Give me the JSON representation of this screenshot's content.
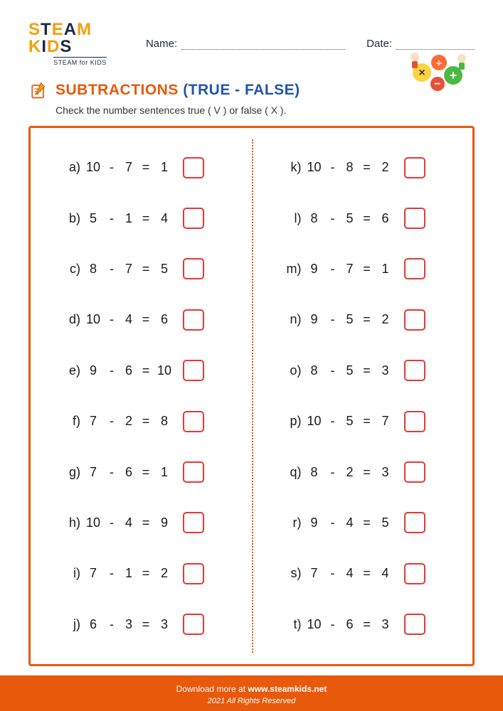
{
  "logo": {
    "main": "STEAM KIDS",
    "sub": "STEAM for KIDS"
  },
  "fields": {
    "name_label": "Name:",
    "date_label": "Date:"
  },
  "title": {
    "part1": "SUBTRACTIONS",
    "part2": "(TRUE - FALSE)"
  },
  "instructions": "Check the number sentences true ( V ) or false ( X ).",
  "problems_left": [
    {
      "label": "a)",
      "a": "10",
      "op": "-",
      "b": "7",
      "eq": "=",
      "r": "1"
    },
    {
      "label": "b)",
      "a": "5",
      "op": "-",
      "b": "1",
      "eq": "=",
      "r": "4"
    },
    {
      "label": "c)",
      "a": "8",
      "op": "-",
      "b": "7",
      "eq": "=",
      "r": "5"
    },
    {
      "label": "d)",
      "a": "10",
      "op": "-",
      "b": "4",
      "eq": "=",
      "r": "6"
    },
    {
      "label": "e)",
      "a": "9",
      "op": "-",
      "b": "6",
      "eq": "=",
      "r": "10"
    },
    {
      "label": "f)",
      "a": "7",
      "op": "-",
      "b": "2",
      "eq": "=",
      "r": "8"
    },
    {
      "label": "g)",
      "a": "7",
      "op": "-",
      "b": "6",
      "eq": "=",
      "r": "1"
    },
    {
      "label": "h)",
      "a": "10",
      "op": "-",
      "b": "4",
      "eq": "=",
      "r": "9"
    },
    {
      "label": "i)",
      "a": "7",
      "op": "-",
      "b": "1",
      "eq": "=",
      "r": "2"
    },
    {
      "label": "j)",
      "a": "6",
      "op": "-",
      "b": "3",
      "eq": "=",
      "r": "3"
    }
  ],
  "problems_right": [
    {
      "label": "k)",
      "a": "10",
      "op": "-",
      "b": "8",
      "eq": "=",
      "r": "2"
    },
    {
      "label": "l)",
      "a": "8",
      "op": "-",
      "b": "5",
      "eq": "=",
      "r": "6"
    },
    {
      "label": "m)",
      "a": "9",
      "op": "-",
      "b": "7",
      "eq": "=",
      "r": "1"
    },
    {
      "label": "n)",
      "a": "9",
      "op": "-",
      "b": "5",
      "eq": "=",
      "r": "2"
    },
    {
      "label": "o)",
      "a": "8",
      "op": "-",
      "b": "5",
      "eq": "=",
      "r": "3"
    },
    {
      "label": "p)",
      "a": "10",
      "op": "-",
      "b": "5",
      "eq": "=",
      "r": "7"
    },
    {
      "label": "q)",
      "a": "8",
      "op": "-",
      "b": "2",
      "eq": "=",
      "r": "3"
    },
    {
      "label": "r)",
      "a": "9",
      "op": "-",
      "b": "4",
      "eq": "=",
      "r": "5"
    },
    {
      "label": "s)",
      "a": "7",
      "op": "-",
      "b": "4",
      "eq": "=",
      "r": "4"
    },
    {
      "label": "t)",
      "a": "10",
      "op": "-",
      "b": "6",
      "eq": "=",
      "r": "3"
    }
  ],
  "footer": {
    "line1_prefix": "Download more at ",
    "site": "www.steamkids.net",
    "copyright": "2021 All Rights Reserved"
  },
  "colors": {
    "accent_orange": "#e8590c",
    "accent_blue": "#2456a6",
    "box_red": "#e53935",
    "text": "#1a1a1a"
  }
}
